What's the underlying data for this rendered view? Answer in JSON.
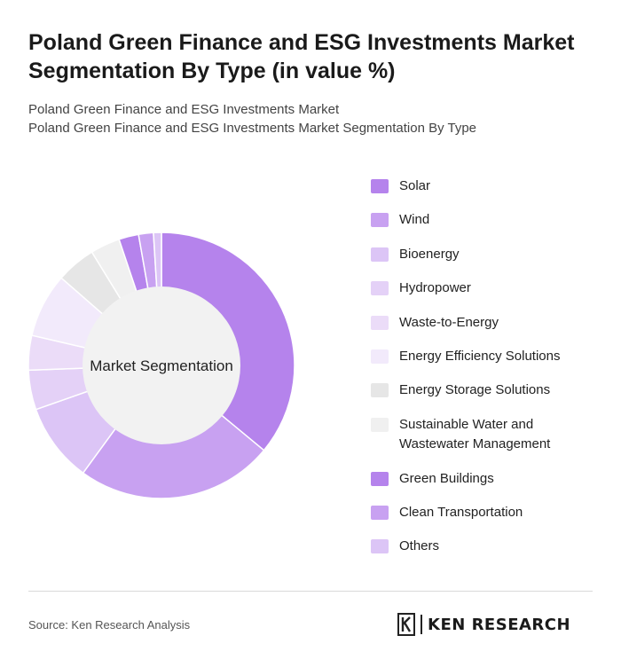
{
  "title": "Poland Green Finance and ESG Investments Market Segmentation By Type (in value %)",
  "subtitle_lines": [
    "Poland Green Finance and ESG Investments Market",
    "Poland Green Finance and ESG Investments Market Segmentation By Type"
  ],
  "chart_data": {
    "type": "pie",
    "center_label": "Market Segmentation",
    "legend_position": "right",
    "categories": [
      "Solar",
      "Wind",
      "Bioenergy",
      "Hydropower",
      "Waste-to-Energy",
      "Energy Efficiency Solutions",
      "Energy Storage Solutions",
      "Sustainable Water and Wastewater Management",
      "Green Buildings",
      "Clean Transportation",
      "Others"
    ],
    "values": [
      30,
      20,
      8,
      4,
      3.5,
      6.5,
      4,
      3,
      2,
      1.5,
      0.8
    ],
    "colors": [
      "#b583ec",
      "#c8a1f1",
      "#dcc5f6",
      "#e4d1f7",
      "#ebdcf8",
      "#f2eafb",
      "#e6e6e6",
      "#f0f0f0",
      "#b583ec",
      "#c8a1f1",
      "#dcc5f6"
    ]
  },
  "footer": {
    "source": "Source: Ken Research Analysis",
    "brand_text": "KEN RESEARCH",
    "brand_icon": "ken-research-logo-icon"
  }
}
